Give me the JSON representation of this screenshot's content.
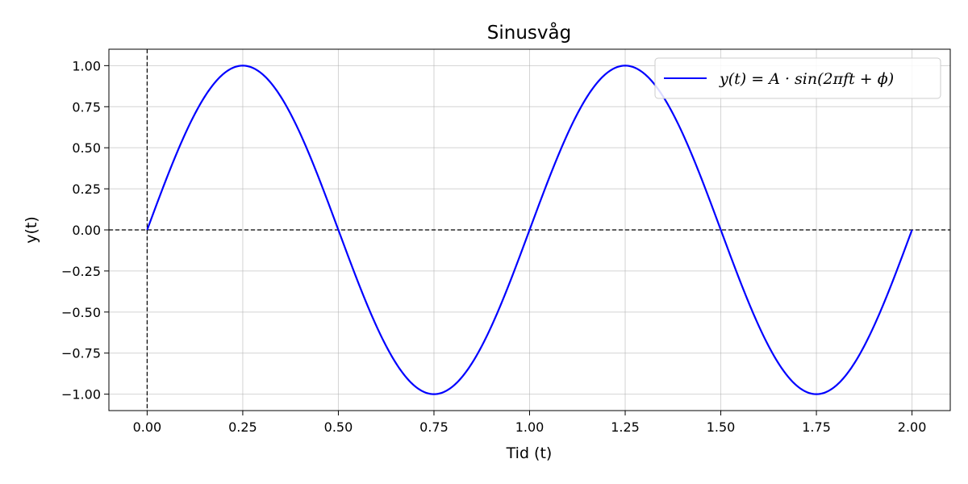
{
  "chart_data": {
    "type": "line",
    "title": "Sinusvåg",
    "xlabel": "Tid (t)",
    "ylabel": "y(t)",
    "xlim": [
      -0.1,
      2.1
    ],
    "ylim": [
      -1.1,
      1.1
    ],
    "xticks": [
      0,
      0.25,
      0.5,
      0.75,
      1.0,
      1.25,
      1.5,
      1.75,
      2.0
    ],
    "xtick_labels": [
      "0.00",
      "0.25",
      "0.50",
      "0.75",
      "1.00",
      "1.25",
      "1.50",
      "1.75",
      "2.00"
    ],
    "yticks": [
      1.0,
      0.75,
      0.5,
      0.25,
      0,
      -0.25,
      -0.5,
      -0.75,
      -1.0
    ],
    "ytick_labels": [
      "1.00",
      "0.75",
      "0.50",
      "0.25",
      "0.00",
      "−0.25",
      "−0.50",
      "−0.75",
      "−1.00"
    ],
    "grid": true,
    "legend_position": "top-right",
    "reference_lines": [
      {
        "orientation": "horizontal",
        "value": 0,
        "style": "dashed",
        "color": "#000000"
      },
      {
        "orientation": "vertical",
        "value": 0,
        "style": "dashed",
        "color": "#000000"
      }
    ],
    "series": [
      {
        "name": "y(t) = A · sin(2πft + ϕ)",
        "color": "#0000ff",
        "function": "sin",
        "amplitude": 1,
        "frequency": 1,
        "phase": 0,
        "x_range": [
          0,
          2
        ],
        "x": [
          0,
          0.25,
          0.5,
          0.75,
          1.0,
          1.25,
          1.5,
          1.75,
          2.0
        ],
        "y": [
          0,
          1,
          0,
          -1,
          0,
          1,
          0,
          -1,
          0
        ]
      }
    ]
  }
}
